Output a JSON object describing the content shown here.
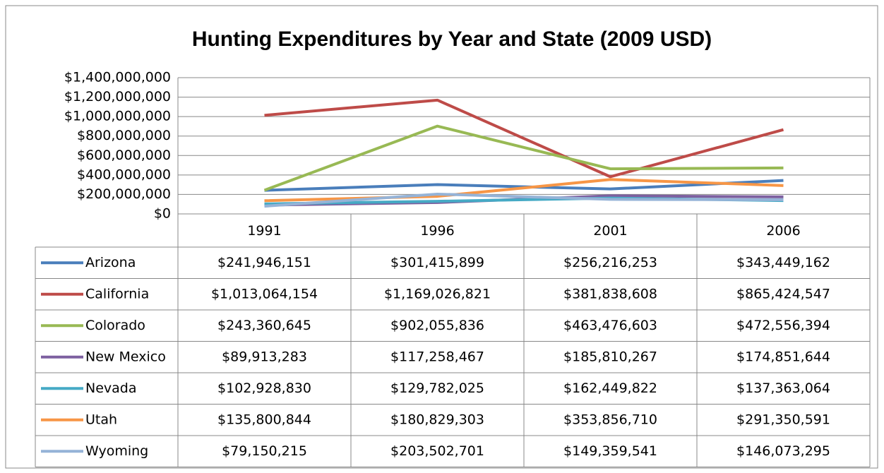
{
  "chart_data": {
    "type": "line",
    "title": "Hunting Expenditures by Year and State (2009 USD)",
    "categories": [
      "1991",
      "1996",
      "2001",
      "2006"
    ],
    "ylim": [
      0,
      1400000000
    ],
    "yticks": [
      {
        "value": 0,
        "label": "$0"
      },
      {
        "value": 200000000,
        "label": "$200,000,000"
      },
      {
        "value": 400000000,
        "label": "$400,000,000"
      },
      {
        "value": 600000000,
        "label": "$600,000,000"
      },
      {
        "value": 800000000,
        "label": "$800,000,000"
      },
      {
        "value": 1000000000,
        "label": "$1,000,000,000"
      },
      {
        "value": 1200000000,
        "label": "$1,200,000,000"
      },
      {
        "value": 1400000000,
        "label": "$1,400,000,000"
      }
    ],
    "grid": true,
    "series": [
      {
        "name": "Arizona",
        "color": "#4a7ebb",
        "values": [
          241946151,
          301415899,
          256216253,
          343449162
        ],
        "value_labels": [
          "$241,946,151",
          "$301,415,899",
          "$256,216,253",
          "$343,449,162"
        ]
      },
      {
        "name": "California",
        "color": "#be4b48",
        "values": [
          1013064154,
          1169026821,
          381838608,
          865424547
        ],
        "value_labels": [
          "$1,013,064,154",
          "$1,169,026,821",
          "$381,838,608",
          "$865,424,547"
        ]
      },
      {
        "name": "Colorado",
        "color": "#98b954",
        "values": [
          243360645,
          902055836,
          463476603,
          472556394
        ],
        "value_labels": [
          "$243,360,645",
          "$902,055,836",
          "$463,476,603",
          "$472,556,394"
        ]
      },
      {
        "name": "New Mexico",
        "color": "#7d60a0",
        "values": [
          89913283,
          117258467,
          185810267,
          174851644
        ],
        "value_labels": [
          "$89,913,283",
          "$117,258,467",
          "$185,810,267",
          "$174,851,644"
        ]
      },
      {
        "name": "Nevada",
        "color": "#46aac5",
        "values": [
          102928830,
          129782025,
          162449822,
          137363064
        ],
        "value_labels": [
          "$102,928,830",
          "$129,782,025",
          "$162,449,822",
          "$137,363,064"
        ]
      },
      {
        "name": "Utah",
        "color": "#f79646",
        "values": [
          135800844,
          180829303,
          353856710,
          291350591
        ],
        "value_labels": [
          "$135,800,844",
          "$180,829,303",
          "$353,856,710",
          "$291,350,591"
        ]
      },
      {
        "name": "Wyoming",
        "color": "#95b3d7",
        "values": [
          79150215,
          203502701,
          149359541,
          146073295
        ],
        "value_labels": [
          "$79,150,215",
          "$203,502,701",
          "$149,359,541",
          "$146,073,295"
        ]
      }
    ]
  }
}
